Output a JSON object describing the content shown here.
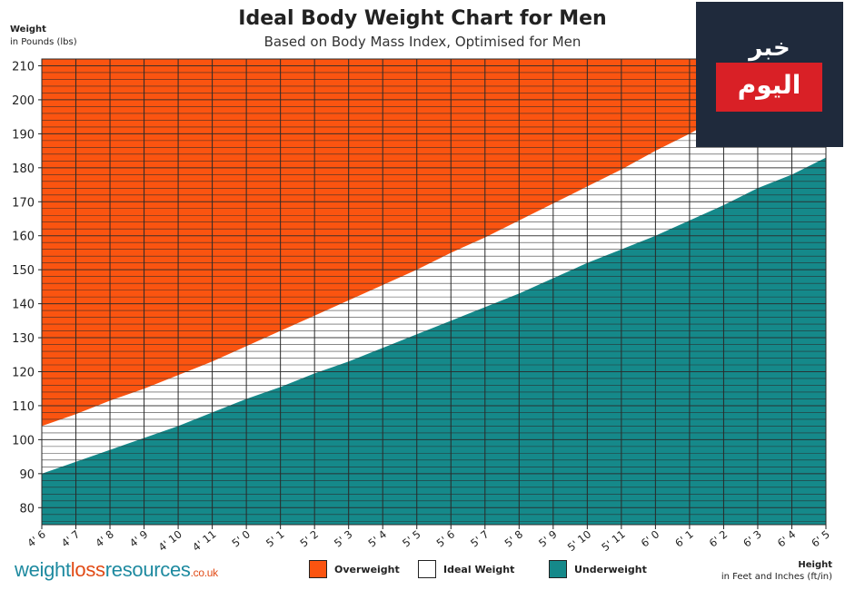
{
  "chart_data": {
    "type": "area",
    "title": "Ideal Body Weight Chart for Men",
    "subtitle": "Based on Body Mass Index, Optimised for Men",
    "ylabel": "Weight",
    "ylabel_unit": "in Pounds (lbs)",
    "xlabel": "Height",
    "xlabel_unit": "in Feet and Inches (ft/in)",
    "ylim": [
      75,
      212
    ],
    "yticks": [
      80,
      90,
      100,
      110,
      120,
      130,
      140,
      150,
      160,
      170,
      180,
      190,
      200,
      210
    ],
    "categories": [
      "4' 6",
      "4' 7",
      "4' 8",
      "4' 9",
      "4' 10",
      "4' 11",
      "5' 0",
      "5' 1",
      "5' 2",
      "5' 3",
      "5' 4",
      "5' 5",
      "5' 6",
      "5' 7",
      "5' 8",
      "5' 9",
      "5' 10",
      "5' 11",
      "6' 0",
      "6' 1",
      "6' 2",
      "6' 3",
      "6' 4",
      "6' 5"
    ],
    "heights_in": [
      54,
      55,
      56,
      57,
      58,
      59,
      60,
      61,
      62,
      63,
      64,
      65,
      66,
      67,
      68,
      69,
      70,
      71,
      72,
      73,
      74,
      75,
      76,
      77
    ],
    "series": [
      {
        "name": "Underweight",
        "color": "#15898a",
        "values": [
          90,
          93.5,
          97,
          100.5,
          104,
          108,
          112,
          115.5,
          119.5,
          123,
          127,
          131,
          135,
          139,
          143,
          147.5,
          152,
          156,
          160,
          164.5,
          169,
          174,
          178,
          183
        ]
      },
      {
        "name": "Ideal Weight",
        "color": "#ffffff",
        "values": [
          104,
          107.5,
          111.5,
          115,
          119,
          123,
          127.5,
          132,
          136.5,
          141,
          145.5,
          150,
          155,
          159.5,
          164.5,
          169.5,
          174.5,
          179.5,
          185,
          190,
          195.5,
          201,
          206.5,
          212
        ]
      },
      {
        "name": "Overweight",
        "color": "#fb5410",
        "values": [
          212,
          212,
          212,
          212,
          212,
          212,
          212,
          212,
          212,
          212,
          212,
          212,
          212,
          212,
          212,
          212,
          212,
          212,
          212,
          212,
          212,
          212,
          212,
          212
        ]
      }
    ],
    "grid": true,
    "legend": [
      {
        "label": "Overweight",
        "color": "#fb5410"
      },
      {
        "label": "Ideal Weight",
        "color": "#ffffff"
      },
      {
        "label": "Underweight",
        "color": "#15898a"
      }
    ],
    "legend_position": "bottom-center"
  },
  "brand": {
    "part1": "weight",
    "part2": "loss",
    "part3": "resources",
    "part4": ".co.uk"
  },
  "logo": {
    "top": "خبر",
    "bottom": "اليوم"
  }
}
